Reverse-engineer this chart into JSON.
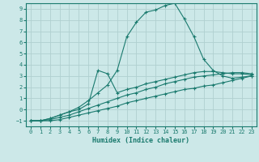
{
  "xlabel": "Humidex (Indice chaleur)",
  "ylabel": "",
  "bg_color": "#cce8e8",
  "grid_color": "#b0d0d0",
  "line_color": "#1a7a6e",
  "xlim": [
    -0.5,
    23.5
  ],
  "ylim": [
    -1.5,
    9.5
  ],
  "xticks": [
    0,
    1,
    2,
    3,
    4,
    5,
    6,
    7,
    8,
    9,
    10,
    11,
    12,
    13,
    14,
    15,
    16,
    17,
    18,
    19,
    20,
    21,
    22,
    23
  ],
  "yticks": [
    -1,
    0,
    1,
    2,
    3,
    4,
    5,
    6,
    7,
    8,
    9
  ],
  "lines": [
    {
      "x": [
        0,
        1,
        2,
        3,
        4,
        5,
        6,
        7,
        8,
        9,
        10,
        11,
        12,
        13,
        14,
        15,
        16,
        17,
        18,
        19,
        20,
        21,
        22,
        23
      ],
      "y": [
        -1,
        -1,
        -1,
        -0.9,
        -0.7,
        -0.5,
        -0.3,
        -0.1,
        0.1,
        0.3,
        0.6,
        0.8,
        1.0,
        1.2,
        1.4,
        1.6,
        1.8,
        1.9,
        2.1,
        2.2,
        2.4,
        2.6,
        2.8,
        3.0
      ]
    },
    {
      "x": [
        0,
        1,
        2,
        3,
        4,
        5,
        6,
        7,
        8,
        9,
        10,
        11,
        12,
        13,
        14,
        15,
        16,
        17,
        18,
        19,
        20,
        21,
        22,
        23
      ],
      "y": [
        -1,
        -1,
        -0.9,
        -0.7,
        -0.5,
        -0.2,
        0.1,
        0.4,
        0.7,
        1.0,
        1.3,
        1.5,
        1.8,
        2.0,
        2.3,
        2.5,
        2.7,
        2.9,
        3.0,
        3.1,
        3.2,
        3.3,
        3.3,
        3.2
      ]
    },
    {
      "x": [
        0,
        1,
        2,
        3,
        4,
        5,
        6,
        7,
        8,
        9,
        10,
        11,
        12,
        13,
        14,
        15,
        16,
        17,
        18,
        19,
        20,
        21,
        22,
        23
      ],
      "y": [
        -1,
        -1,
        -0.8,
        -0.5,
        -0.2,
        0.0,
        0.5,
        3.5,
        3.2,
        1.5,
        1.8,
        2.0,
        2.3,
        2.5,
        2.7,
        2.9,
        3.1,
        3.3,
        3.4,
        3.4,
        3.3,
        3.2,
        3.2,
        3.1
      ]
    },
    {
      "x": [
        0,
        1,
        2,
        3,
        4,
        5,
        6,
        7,
        8,
        9,
        10,
        11,
        12,
        13,
        14,
        15,
        16,
        17,
        18,
        19,
        20,
        21,
        22,
        23
      ],
      "y": [
        -1,
        -1,
        -0.8,
        -0.5,
        -0.2,
        0.2,
        0.8,
        1.5,
        2.2,
        3.5,
        6.5,
        7.8,
        8.7,
        8.9,
        9.3,
        9.5,
        8.1,
        6.5,
        4.5,
        3.5,
        3.0,
        2.8,
        2.9,
        3.0
      ]
    }
  ]
}
